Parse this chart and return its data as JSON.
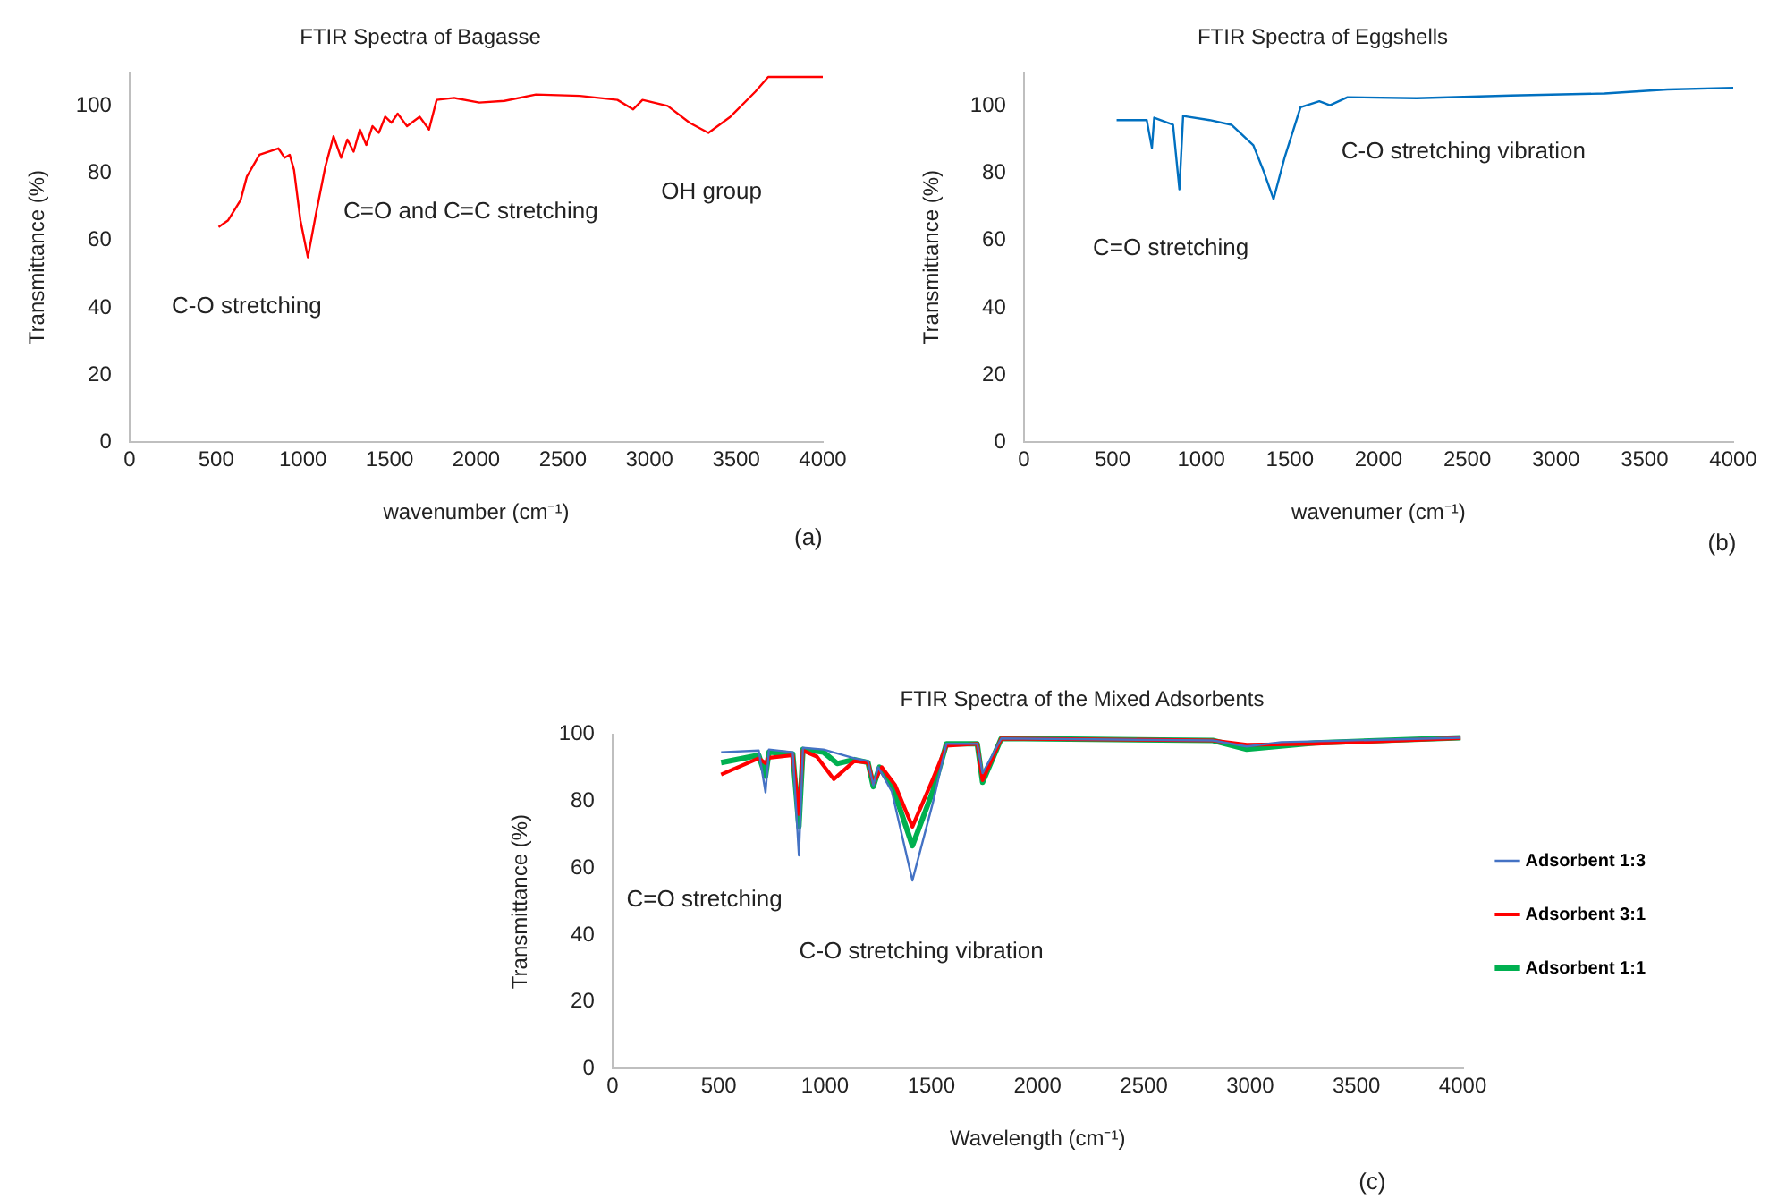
{
  "chart_data": [
    {
      "type": "line",
      "title": "FTIR Spectra of Bagasse",
      "xlabel": "wavenumber (cm⁻¹)",
      "ylabel": "Transmittance (%)",
      "xlim": [
        0,
        4000
      ],
      "xticks": [
        0,
        500,
        1000,
        1500,
        2000,
        2500,
        3000,
        3500,
        4000
      ],
      "ylim": [
        0,
        110
      ],
      "yticks": [
        0,
        20,
        40,
        60,
        80,
        100
      ],
      "grid": false,
      "legend": false,
      "annotations": [
        "C-O stretching",
        "C=O and C=C stretching",
        "OH group",
        "(a)"
      ],
      "series": [
        {
          "color": "#ff0000",
          "x": [
            514,
            569,
            641,
            677,
            750,
            859,
            895,
            924,
            949,
            986,
            1029,
            1076,
            1130,
            1177,
            1221,
            1257,
            1293,
            1329,
            1366,
            1402,
            1438,
            1475,
            1511,
            1547,
            1601,
            1674,
            1728,
            1772,
            1873,
            2018,
            2163,
            2345,
            2598,
            2815,
            2906,
            2960,
            3105,
            3232,
            3340,
            3467,
            3612,
            3685,
            4000
          ],
          "values": [
            64,
            66,
            72,
            79,
            85.5,
            87.4,
            84.6,
            85.5,
            81,
            66,
            55,
            68,
            82,
            91,
            84.6,
            90,
            86.4,
            93,
            88.4,
            94,
            92,
            96.8,
            95,
            97.7,
            94,
            96.8,
            93,
            101.8,
            102.4,
            101,
            101.5,
            103.4,
            103,
            101.8,
            99,
            101.8,
            100,
            95,
            92,
            96.8,
            104.3,
            108.6,
            108.6
          ]
        }
      ]
    },
    {
      "type": "line",
      "title": "FTIR Spectra of Eggshells",
      "xlabel": "wavenumer (cm⁻¹)",
      "ylabel": "Transmittance (%)",
      "xlim": [
        0,
        4000
      ],
      "xticks": [
        0,
        500,
        1000,
        1500,
        2000,
        2500,
        3000,
        3500,
        4000
      ],
      "ylim": [
        0,
        110
      ],
      "yticks": [
        0,
        20,
        40,
        60,
        80,
        100
      ],
      "grid": false,
      "legend": false,
      "annotations": [
        "C=O stretching",
        "C-O stretching vibration",
        "(b)"
      ],
      "series": [
        {
          "color": "#0070c0",
          "x": [
            523,
            693,
            722,
            735,
            841,
            877,
            898,
            1047,
            1170,
            1223,
            1294,
            1347,
            1408,
            1471,
            1560,
            1666,
            1726,
            1825,
            2214,
            2745,
            3275,
            3629,
            4000
          ],
          "values": [
            95.8,
            95.8,
            87.5,
            96.5,
            94.4,
            75.2,
            97,
            95.8,
            94.4,
            91.8,
            88.3,
            81.3,
            72.3,
            84.8,
            99.6,
            101.4,
            100.2,
            102.6,
            102.3,
            103.1,
            103.7,
            104.9,
            105.4
          ]
        }
      ]
    },
    {
      "type": "line",
      "title": "FTIR Spectra of the Mixed Adsorbents",
      "xlabel": "Wavelength (cm⁻¹)",
      "ylabel": "Transmittance (%)",
      "xlim": [
        0,
        4000
      ],
      "xticks": [
        0,
        500,
        1000,
        1500,
        2000,
        2500,
        3000,
        3500,
        4000
      ],
      "ylim": [
        0,
        100
      ],
      "yticks": [
        0,
        20,
        40,
        60,
        80,
        100
      ],
      "grid": false,
      "legend": "right",
      "annotations": [
        "C=O stretching",
        "C-O stretching vibration",
        "(c)"
      ],
      "series": [
        {
          "name": "Adsorbent 1:3",
          "color": "#4472c4",
          "x": [
            511,
            688,
            720,
            736,
            848,
            877,
            896,
            993,
            1137,
            1202,
            1227,
            1250,
            1314,
            1411,
            1507,
            1571,
            1716,
            1741,
            1829,
            2824,
            2984,
            3146,
            3990
          ],
          "values": [
            94.7,
            95.2,
            82.7,
            95.5,
            94.7,
            63.8,
            96,
            95.5,
            92.9,
            92,
            84.8,
            90.2,
            83,
            56.3,
            79.5,
            97.2,
            97.2,
            88.4,
            98.8,
            98.2,
            96.4,
            97.7,
            99
          ]
        },
        {
          "name": "Adsorbent 3:1",
          "color": "#ff0000",
          "x": [
            511,
            688,
            720,
            736,
            848,
            877,
            896,
            961,
            1041,
            1137,
            1202,
            1227,
            1267,
            1330,
            1411,
            1507,
            1571,
            1716,
            1741,
            1829,
            2824,
            2984,
            3306,
            3990
          ],
          "values": [
            88,
            92.9,
            91.4,
            93,
            93.8,
            76.2,
            95.2,
            93.4,
            86.6,
            92,
            91.6,
            85.5,
            90.2,
            84.8,
            72.4,
            86.6,
            96.6,
            97.2,
            86.3,
            98.8,
            98.2,
            96.9,
            97.2,
            98.9
          ]
        },
        {
          "name": "Adsorbent 1:1",
          "color": "#00b050",
          "x": [
            511,
            688,
            720,
            736,
            848,
            877,
            896,
            993,
            1057,
            1137,
            1202,
            1227,
            1256,
            1320,
            1411,
            1507,
            1571,
            1716,
            1741,
            1829,
            2824,
            2984,
            3306,
            3990
          ],
          "values": [
            91.6,
            93.8,
            87.5,
            94.7,
            94.2,
            72.4,
            95.5,
            94.7,
            91.3,
            92.5,
            91.6,
            84.4,
            90.2,
            83.9,
            66.7,
            83,
            97.2,
            97.2,
            85.7,
            98.8,
            98.2,
            95.6,
            97.5,
            99
          ]
        }
      ]
    }
  ]
}
